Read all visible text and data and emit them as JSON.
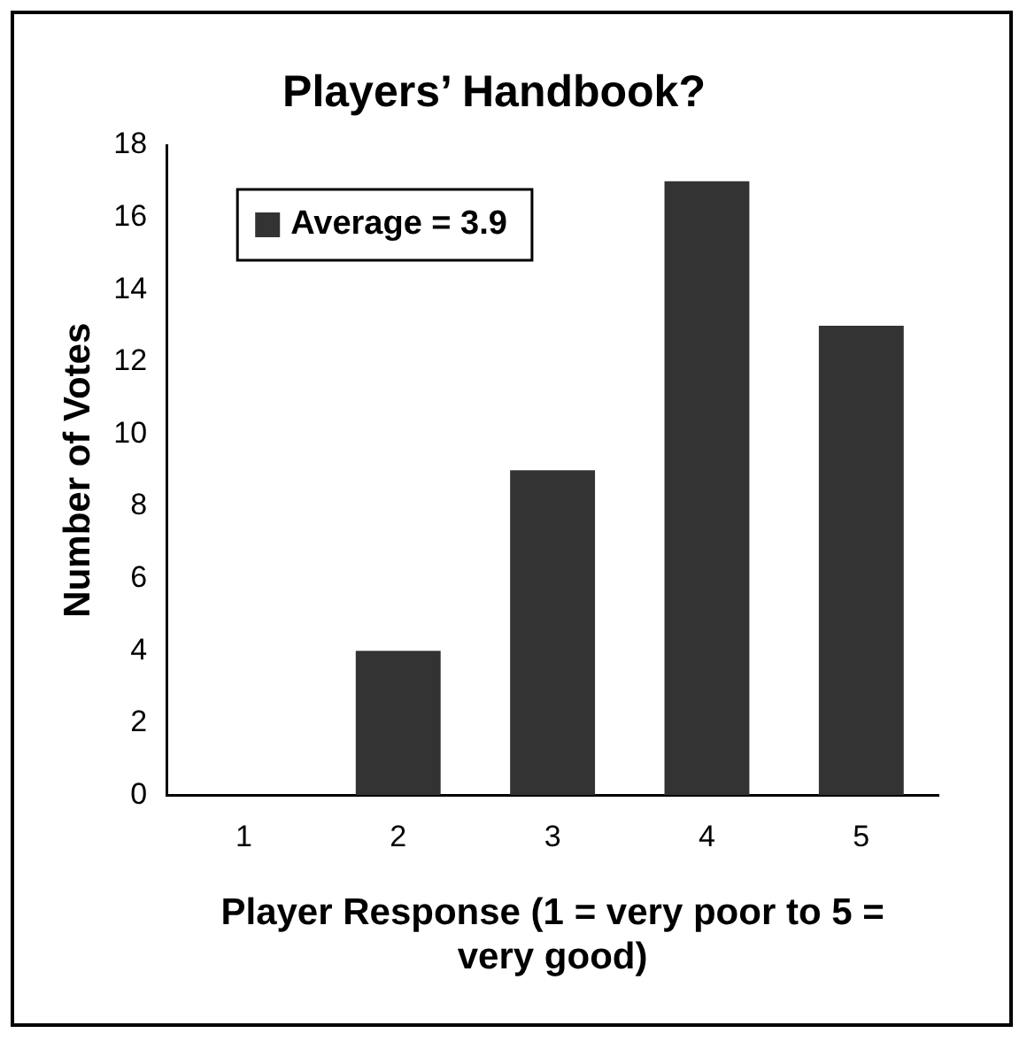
{
  "chart_data": {
    "type": "bar",
    "title": "Players’ Handbook?",
    "xlabel": "Player Response (1 = very poor to 5 = very good)",
    "ylabel": "Number of Votes",
    "categories": [
      "1",
      "2",
      "3",
      "4",
      "5"
    ],
    "series": [
      {
        "name": "Average = 3.9",
        "color": "#333333",
        "values": [
          0,
          4,
          9,
          17,
          13
        ]
      }
    ],
    "ylim": [
      0,
      18
    ],
    "yticks": [
      0,
      2,
      4,
      6,
      8,
      10,
      12,
      14,
      16,
      18
    ],
    "grid": false,
    "legend": "top left"
  }
}
